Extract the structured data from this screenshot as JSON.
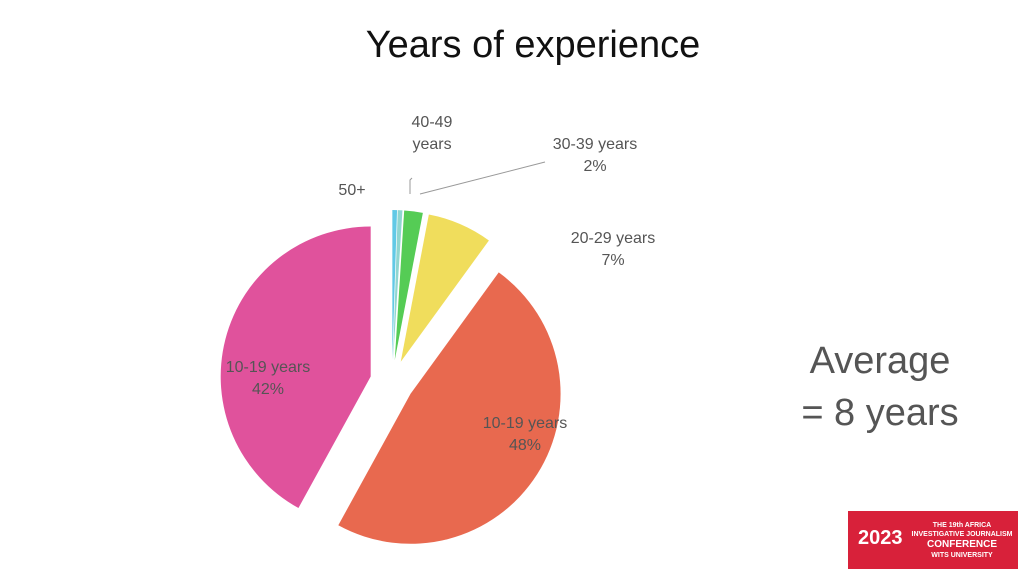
{
  "chart_data": {
    "type": "pie",
    "title": "Years of experience",
    "categories": [
      "50+",
      "40-49 years",
      "30-39 years",
      "20-29 years",
      "10-19 years",
      "10-19 years"
    ],
    "values": [
      0.5,
      0.5,
      2,
      7,
      48,
      42
    ],
    "value_labels": [
      null,
      null,
      "2%",
      "7%",
      "48%",
      "42%"
    ],
    "colors": [
      "#62c9e6",
      "#8fd6d0",
      "#55cc55",
      "#f0dd5c",
      "#e8694f",
      "#e0529c"
    ],
    "annotations": [
      "Average",
      "= 8 years"
    ],
    "logo": {
      "year": "2023",
      "lines": [
        "THE 19th AFRICA",
        "INVESTIGATIVE JOURNALISM",
        "CONFERENCE",
        "WITS UNIVERSITY"
      ]
    }
  }
}
